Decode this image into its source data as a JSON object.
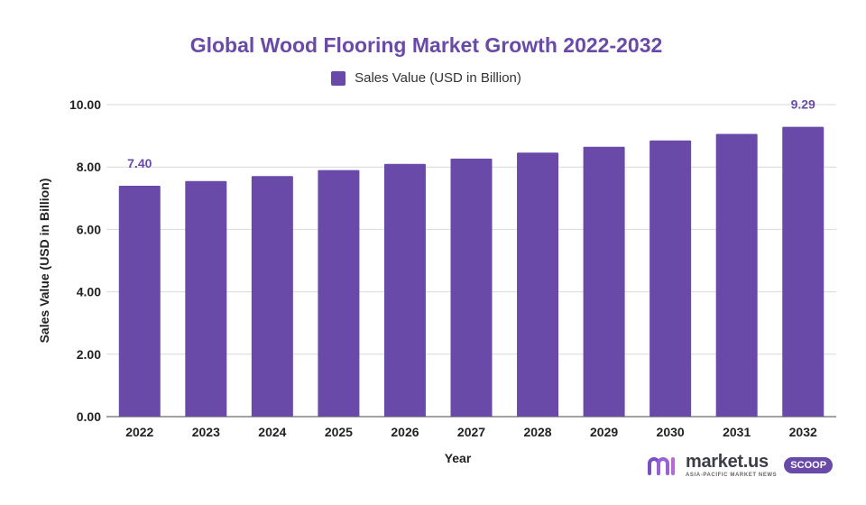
{
  "chart_data": {
    "type": "bar",
    "title": "Global Wood Flooring Market Growth 2022-2032",
    "xlabel": "Year",
    "ylabel": "Sales Value (USD in Billion)",
    "ylim": [
      0,
      10
    ],
    "y_ticks": [
      "0.00",
      "2.00",
      "4.00",
      "6.00",
      "8.00",
      "10.00"
    ],
    "y_tick_values": [
      0,
      2,
      4,
      6,
      8,
      10
    ],
    "categories": [
      "2022",
      "2023",
      "2024",
      "2025",
      "2026",
      "2027",
      "2028",
      "2029",
      "2030",
      "2031",
      "2032"
    ],
    "series": [
      {
        "name": "Sales Value (USD in Billion)",
        "color": "#6a4aa8",
        "values": [
          7.4,
          7.55,
          7.71,
          7.9,
          8.1,
          8.27,
          8.46,
          8.65,
          8.85,
          9.06,
          9.29
        ]
      }
    ],
    "data_labels": [
      {
        "category": "2022",
        "text": "7.40"
      },
      {
        "category": "2032",
        "text": "9.29"
      }
    ],
    "legend_position": "top-center",
    "grid": true
  },
  "logo": {
    "name": "market.us",
    "tagline": "ASIA-PACIFIC MARKET NEWS",
    "badge": "SCOOP"
  }
}
